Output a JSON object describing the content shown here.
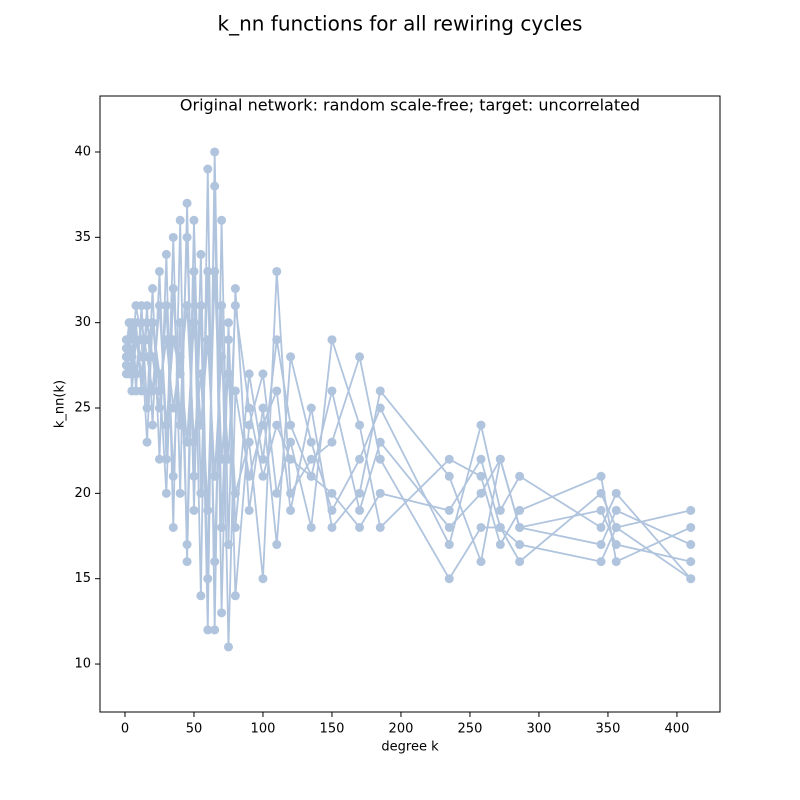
{
  "chart_data": {
    "type": "line",
    "title": "k_nn functions for all rewiring cycles",
    "subtitle": "Original network: random scale-free; target: uncorrelated",
    "xlabel": "degree k",
    "ylabel": "k_nn(k)",
    "x": [
      1,
      3,
      5,
      8,
      12,
      16,
      20,
      25,
      30,
      35,
      40,
      45,
      50,
      55,
      60,
      65,
      70,
      75,
      80,
      90,
      100,
      110,
      120,
      135,
      150,
      170,
      185,
      235,
      258,
      272,
      286,
      345,
      356,
      410
    ],
    "series": [
      {
        "color": "#b0c4de",
        "values": [
          28,
          29,
          27,
          30,
          26,
          31,
          24,
          33,
          22,
          35,
          20,
          37,
          19,
          34,
          15,
          38,
          13,
          30,
          18,
          27,
          22,
          29,
          24,
          21,
          26,
          19,
          23,
          18,
          20,
          22,
          18,
          19,
          17,
          16
        ]
      },
      {
        "color": "#b0c4de",
        "values": [
          27.5,
          28,
          30,
          26,
          31,
          25,
          32,
          22,
          34,
          18,
          36,
          16,
          33,
          14,
          39,
          12,
          36,
          17,
          32,
          19,
          25,
          17,
          28,
          23,
          19,
          22,
          25,
          17,
          24,
          19,
          21,
          18,
          20,
          15
        ]
      },
      {
        "color": "#b0c4de",
        "values": [
          29,
          27,
          28,
          31,
          29,
          23,
          30,
          27,
          20,
          32,
          24,
          35,
          21,
          31,
          12,
          40,
          18,
          29,
          14,
          24,
          27,
          20,
          23,
          18,
          29,
          24,
          18,
          22,
          21,
          17,
          19,
          21,
          16,
          18
        ]
      },
      {
        "color": "#b0c4de",
        "values": [
          28.5,
          30,
          26,
          29,
          27,
          30,
          28,
          25,
          31,
          21,
          30,
          17,
          36,
          20,
          33,
          16,
          31,
          11,
          26,
          21,
          24,
          26,
          19,
          25,
          18,
          20,
          26,
          21,
          16,
          22,
          18,
          17,
          19,
          17
        ]
      },
      {
        "color": "#b0c4de",
        "values": [
          28,
          28.5,
          29.5,
          27,
          30,
          28,
          26,
          31,
          24,
          29,
          27,
          31,
          23,
          27,
          19,
          33,
          22,
          27,
          20,
          23,
          15,
          33,
          20,
          22,
          23,
          28,
          22,
          15,
          18,
          18,
          16,
          20,
          18,
          19
        ]
      },
      {
        "color": "#b0c4de",
        "values": [
          27,
          29,
          28,
          29,
          28,
          29,
          30,
          26,
          29,
          25,
          28,
          23,
          30,
          24,
          29,
          21,
          28,
          22,
          31,
          25,
          21,
          24,
          22,
          21,
          20,
          18,
          20,
          19,
          22,
          18,
          17,
          16,
          18,
          15
        ]
      }
    ],
    "xlim": [
      -18.1,
      431.2
    ],
    "ylim": [
      7.19,
      43.28
    ],
    "xticks": [
      0,
      50,
      100,
      150,
      200,
      250,
      300,
      350,
      400
    ],
    "yticks": [
      10,
      15,
      20,
      25,
      30,
      35,
      40
    ],
    "grid": false
  }
}
